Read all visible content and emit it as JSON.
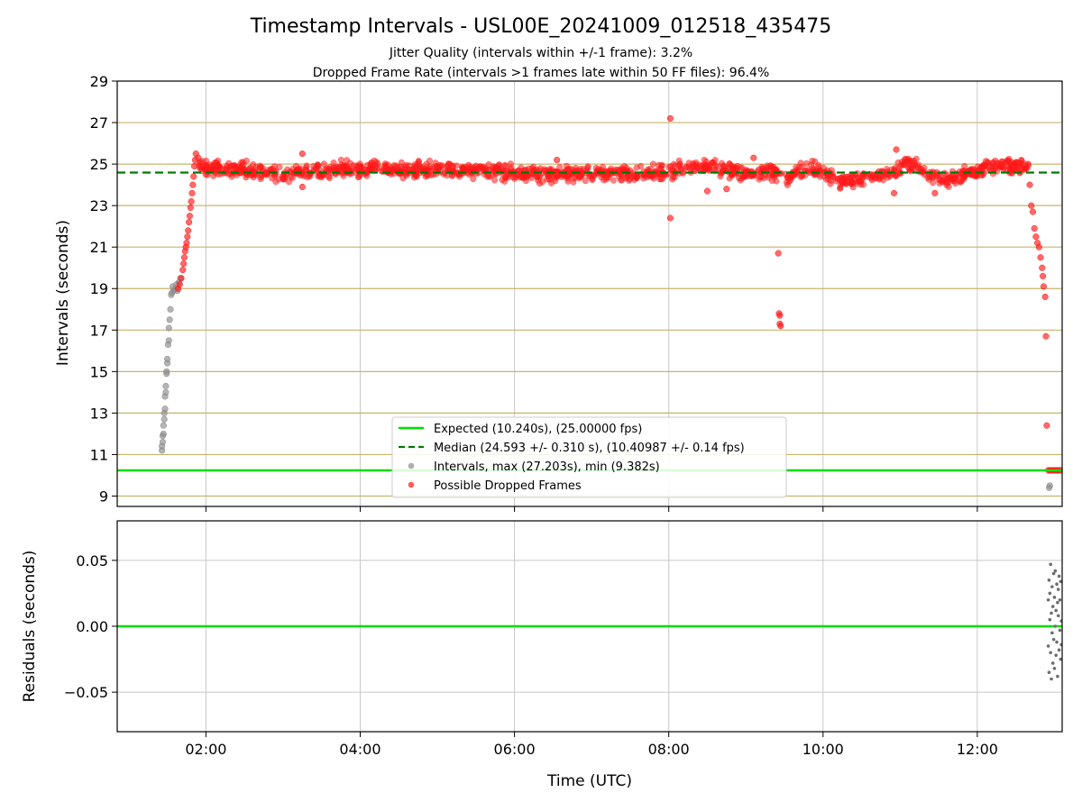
{
  "figure": {
    "title": "Timestamp Intervals - USL00E_20241009_012518_435475",
    "subtitle_line1": "Jitter Quality (intervals within +/-1 frame): 3.2%",
    "subtitle_line2": "Dropped Frame Rate (intervals >1 frames late within 50 FF files): 96.4%"
  },
  "colors": {
    "expected": "#00e000",
    "median": "#007a00",
    "hline": "#c9b36a",
    "grid": "#c8c8c8",
    "intervals": "#8c8c8c",
    "dropped": "#ff1a1a",
    "residual": "#6e6e6e"
  },
  "chart_data": [
    {
      "type": "scatter",
      "xlabel": "",
      "ylabel": "Intervals (seconds)",
      "x_unit": "hours UTC",
      "xlim": [
        0.85,
        13.1
      ],
      "ylim": [
        8.5,
        29
      ],
      "yticks": [
        9,
        11,
        13,
        15,
        17,
        19,
        21,
        23,
        25,
        27,
        29
      ],
      "xticks": [
        2,
        4,
        6,
        8,
        10,
        12
      ],
      "xtick_labels": [
        "02:00",
        "04:00",
        "06:00",
        "08:00",
        "10:00",
        "12:00"
      ],
      "horizontal_lines": [
        9,
        11,
        13,
        15,
        17,
        19,
        21,
        23,
        25,
        27
      ],
      "legend_position": "lower-center",
      "legend": [
        "Expected (10.240s), (25.00000 fps)",
        "Median (24.593 +/- 0.310 s), (10.40987 +/- 0.14 fps)",
        "Intervals, max (27.203s), min (9.382s)",
        "Possible Dropped Frames"
      ],
      "expected_y": 10.24,
      "median_y": 24.593,
      "series": [
        {
          "name": "Intervals, max (27.203s), min (9.382s)",
          "style": "grey",
          "points": [
            [
              1.43,
              11.2
            ],
            [
              1.43,
              11.4
            ],
            [
              1.44,
              11.6
            ],
            [
              1.44,
              11.9
            ],
            [
              1.45,
              12.0
            ],
            [
              1.45,
              12.4
            ],
            [
              1.46,
              12.7
            ],
            [
              1.46,
              13.0
            ],
            [
              1.47,
              13.2
            ],
            [
              1.47,
              13.8
            ],
            [
              1.48,
              14.0
            ],
            [
              1.48,
              14.3
            ],
            [
              1.49,
              14.9
            ],
            [
              1.49,
              15.0
            ],
            [
              1.5,
              15.4
            ],
            [
              1.5,
              15.6
            ],
            [
              1.51,
              16.3
            ],
            [
              1.52,
              16.5
            ],
            [
              1.52,
              17.1
            ],
            [
              1.53,
              17.5
            ],
            [
              1.54,
              18.0
            ],
            [
              1.55,
              18.7
            ],
            [
              1.56,
              18.8
            ],
            [
              1.57,
              19.1
            ],
            [
              1.58,
              18.9
            ],
            [
              1.6,
              19.0
            ],
            [
              1.62,
              19.2
            ],
            [
              1.63,
              18.9
            ],
            [
              1.65,
              19.3
            ],
            [
              1.67,
              19.5
            ],
            [
              12.93,
              9.4
            ],
            [
              12.94,
              9.5
            ]
          ]
        },
        {
          "name": "Possible Dropped Frames",
          "style": "red",
          "points": [
            [
              1.64,
              19.0
            ],
            [
              1.66,
              19.2
            ],
            [
              1.68,
              19.5
            ],
            [
              1.7,
              19.9
            ],
            [
              1.71,
              20.2
            ],
            [
              1.72,
              20.5
            ],
            [
              1.73,
              20.8
            ],
            [
              1.74,
              21.0
            ],
            [
              1.75,
              21.2
            ],
            [
              1.76,
              21.5
            ],
            [
              1.77,
              21.8
            ],
            [
              1.78,
              22.2
            ],
            [
              1.79,
              22.5
            ],
            [
              1.8,
              22.9
            ],
            [
              1.81,
              23.2
            ],
            [
              1.82,
              23.6
            ],
            [
              1.83,
              24.0
            ],
            [
              1.84,
              24.4
            ],
            [
              1.85,
              24.9
            ],
            [
              1.86,
              25.2
            ],
            [
              1.87,
              25.5
            ],
            [
              1.9,
              25.3
            ],
            [
              8.02,
              27.2
            ],
            [
              8.02,
              22.4
            ],
            [
              9.42,
              20.7
            ],
            [
              9.43,
              17.8
            ],
            [
              9.44,
              17.7
            ],
            [
              9.44,
              17.3
            ],
            [
              9.45,
              17.2
            ],
            [
              12.68,
              24.0
            ],
            [
              12.7,
              23.0
            ],
            [
              12.72,
              22.7
            ],
            [
              12.74,
              21.9
            ],
            [
              12.76,
              21.5
            ],
            [
              12.78,
              21.2
            ],
            [
              12.8,
              21.0
            ],
            [
              12.82,
              20.5
            ],
            [
              12.84,
              20.0
            ],
            [
              12.85,
              19.6
            ],
            [
              12.86,
              19.1
            ],
            [
              12.88,
              18.6
            ],
            [
              12.89,
              16.7
            ],
            [
              12.9,
              12.4
            ],
            [
              12.92,
              10.24
            ],
            [
              12.94,
              10.24
            ],
            [
              12.96,
              10.24
            ],
            [
              12.98,
              10.24
            ],
            [
              13.0,
              10.24
            ],
            [
              13.02,
              10.24
            ],
            [
              13.04,
              10.24
            ],
            [
              13.06,
              10.24
            ],
            [
              13.08,
              10.24
            ]
          ],
          "band": {
            "x_start": 1.9,
            "x_end": 12.67,
            "center_points": [
              [
                1.9,
                24.9
              ],
              [
                2.5,
                24.7
              ],
              [
                3.0,
                24.5
              ],
              [
                3.5,
                24.7
              ],
              [
                4.0,
                24.8
              ],
              [
                4.5,
                24.7
              ],
              [
                5.0,
                24.75
              ],
              [
                5.5,
                24.7
              ],
              [
                6.0,
                24.6
              ],
              [
                6.5,
                24.5
              ],
              [
                7.0,
                24.55
              ],
              [
                7.5,
                24.5
              ],
              [
                8.0,
                24.6
              ],
              [
                8.3,
                24.9
              ],
              [
                8.6,
                24.9
              ],
              [
                9.0,
                24.5
              ],
              [
                9.3,
                24.6
              ],
              [
                9.5,
                24.3
              ],
              [
                9.8,
                24.8
              ],
              [
                10.0,
                24.5
              ],
              [
                10.3,
                24.2
              ],
              [
                10.6,
                24.3
              ],
              [
                10.9,
                24.6
              ],
              [
                11.1,
                25.1
              ],
              [
                11.3,
                24.6
              ],
              [
                11.6,
                24.2
              ],
              [
                11.9,
                24.6
              ],
              [
                12.2,
                24.9
              ],
              [
                12.5,
                24.9
              ],
              [
                12.67,
                24.8
              ]
            ],
            "spread": 0.35,
            "outliers": [
              [
                3.25,
                25.5
              ],
              [
                3.25,
                23.9
              ],
              [
                6.55,
                25.2
              ],
              [
                8.75,
                23.8
              ],
              [
                9.1,
                25.3
              ],
              [
                10.95,
                25.7
              ],
              [
                10.92,
                23.6
              ],
              [
                11.45,
                23.6
              ],
              [
                8.5,
                23.7
              ]
            ]
          }
        }
      ]
    },
    {
      "type": "scatter",
      "xlabel": "Time (UTC)",
      "ylabel": "Residuals (seconds)",
      "xlim": [
        0.85,
        13.1
      ],
      "ylim": [
        -0.08,
        0.08
      ],
      "yticks": [
        -0.05,
        0.0,
        0.05
      ],
      "ytick_labels": [
        "−0.05",
        "0.00",
        "0.05"
      ],
      "xticks": [
        2,
        4,
        6,
        8,
        10,
        12
      ],
      "xtick_labels": [
        "02:00",
        "04:00",
        "06:00",
        "08:00",
        "10:00",
        "12:00"
      ],
      "zero_line": 0.0,
      "series": [
        {
          "name": "",
          "style": "residual",
          "points": [
            [
              12.92,
              0.02
            ],
            [
              12.92,
              -0.015
            ],
            [
              12.93,
              0.035
            ],
            [
              12.93,
              -0.035
            ],
            [
              12.94,
              0.005
            ],
            [
              12.94,
              0.025
            ],
            [
              12.95,
              -0.02
            ],
            [
              12.95,
              0.047
            ],
            [
              12.96,
              -0.04
            ],
            [
              12.96,
              0.01
            ],
            [
              12.97,
              0.03
            ],
            [
              12.97,
              -0.005
            ],
            [
              12.98,
              0.015
            ],
            [
              12.98,
              -0.028
            ],
            [
              12.99,
              0.04
            ],
            [
              12.99,
              -0.01
            ],
            [
              13.0,
              0.022
            ],
            [
              13.0,
              -0.032
            ],
            [
              13.01,
              0.0
            ],
            [
              13.01,
              0.042
            ],
            [
              13.02,
              -0.022
            ],
            [
              13.02,
              0.012
            ],
            [
              13.03,
              0.032
            ],
            [
              13.03,
              -0.012
            ],
            [
              13.04,
              0.018
            ],
            [
              13.04,
              -0.038
            ],
            [
              13.05,
              0.008
            ],
            [
              13.05,
              0.028
            ],
            [
              13.06,
              -0.018
            ],
            [
              13.06,
              0.038
            ],
            [
              13.07,
              -0.003
            ],
            [
              13.07,
              0.02
            ],
            [
              13.08,
              -0.025
            ],
            [
              13.08,
              0.034
            ],
            [
              13.09,
              0.004
            ],
            [
              13.09,
              -0.014
            ]
          ]
        }
      ]
    }
  ]
}
